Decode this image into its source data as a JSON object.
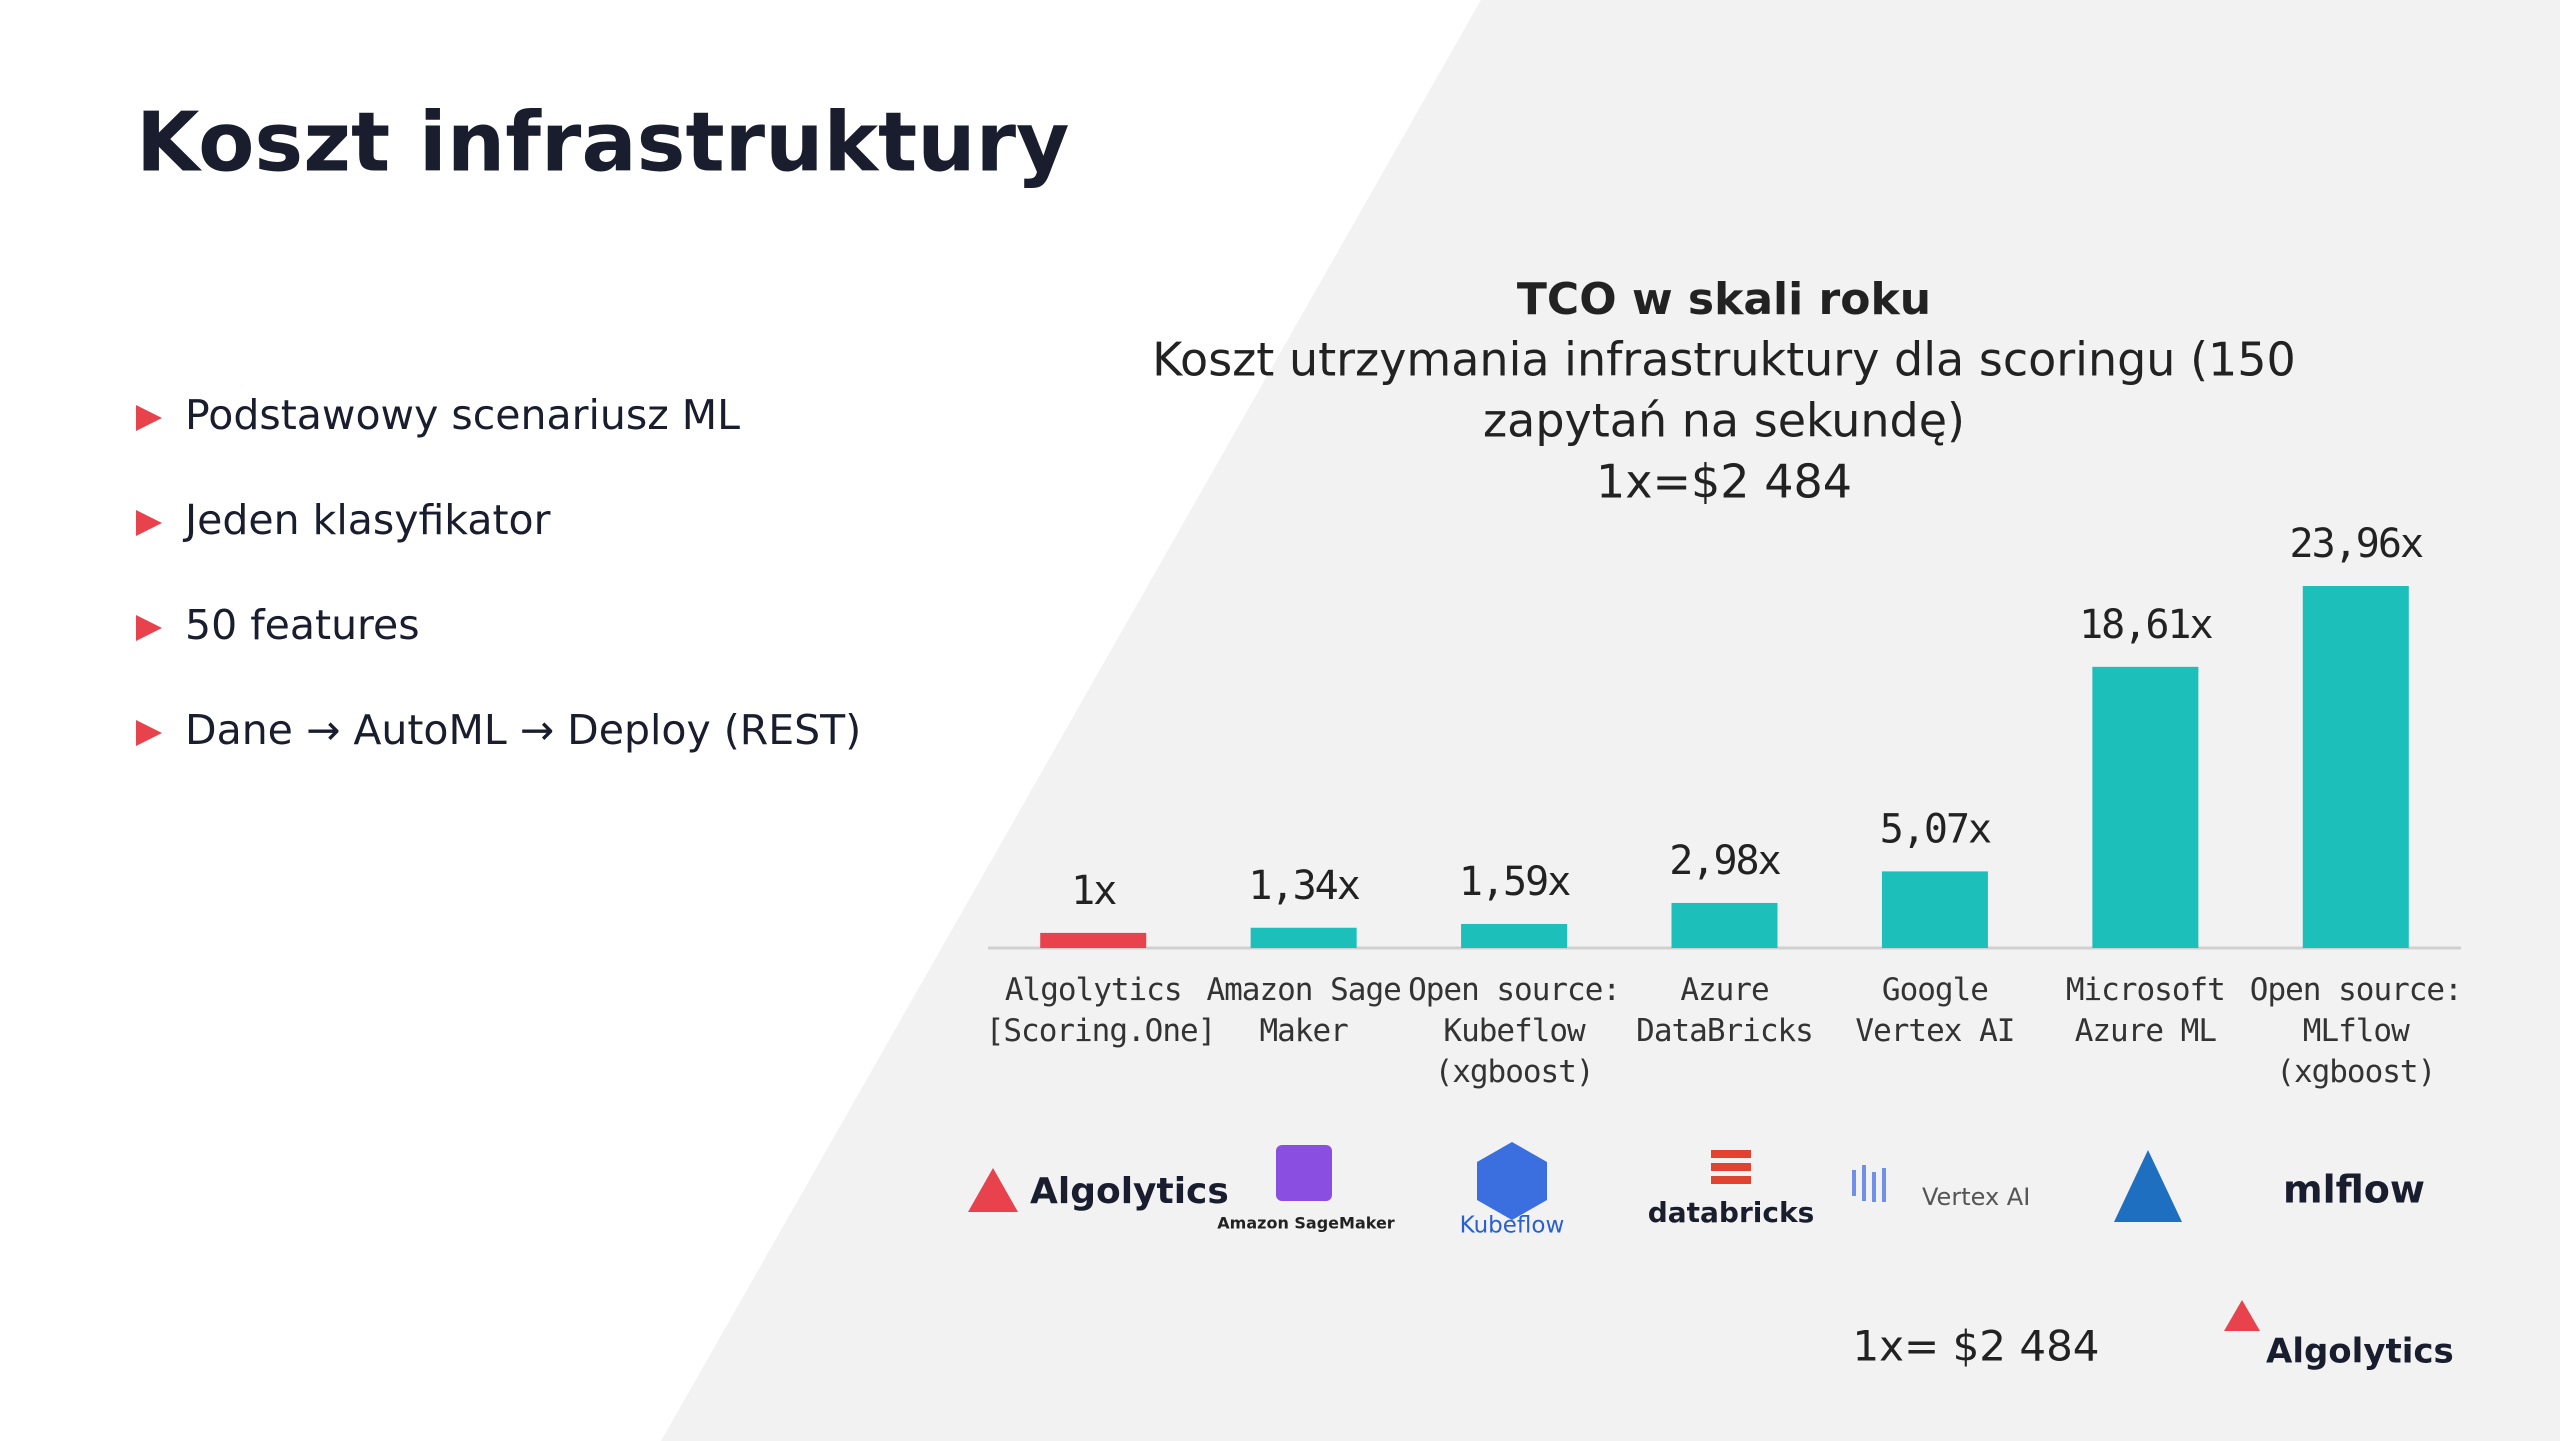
{
  "slide": {
    "title": "Koszt infrastruktury",
    "bullets": [
      "Podstawowy scenariusz ML",
      "Jeden klasyfikator",
      "50 features",
      "Dane → AutoML → Deploy (REST)"
    ],
    "logos": [
      "Algolytics",
      "Amazon SageMaker",
      "Kubeflow",
      "databricks",
      "Vertex AI",
      "mlflow"
    ],
    "footer_note": "1x= $2 484",
    "footer_brand": "Algolytics"
  },
  "chart_data": {
    "type": "bar",
    "title": "TCO w skali roku",
    "subtitle": [
      "Koszt utrzymania infrastruktury dla scoringu (150",
      "zapytań na sekundę)",
      "1x=$2 484"
    ],
    "categories": [
      "Algolytics\n[Scoring.One]",
      "Amazon Sage\nMaker",
      "Open source:\nKubeflow\n(xgboost)",
      "Azure\nDataBricks",
      "Google\nVertex AI",
      "Microsoft\nAzure ML",
      "Open source:\nMLflow\n(xgboost)"
    ],
    "values": [
      1,
      1.34,
      1.59,
      2.98,
      5.07,
      18.61,
      23.96
    ],
    "value_labels": [
      "1x",
      "1,34x",
      "1,59x",
      "2,98x",
      "5,07x",
      "18,61x",
      "23,96x"
    ],
    "colors": [
      "#e8434d",
      "#1dbfbb",
      "#1dbfbb",
      "#1dbfbb",
      "#1dbfbb",
      "#1dbfbb",
      "#1dbfbb"
    ]
  }
}
